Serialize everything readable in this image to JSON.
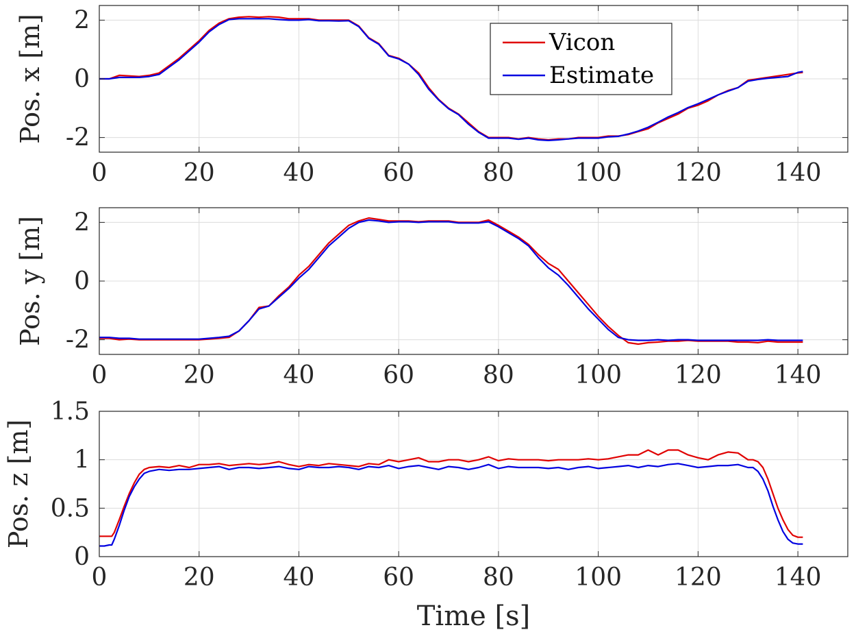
{
  "colors": {
    "vicon": "#e00000",
    "estimate": "#0000e0"
  },
  "legend": {
    "vicon": "Vicon",
    "estimate": "Estimate",
    "placement": "top-right (top subplot)"
  },
  "chart_data": [
    {
      "type": "line",
      "name": "pos-x",
      "ylabel": "Pos. x [m]",
      "xlabel": "",
      "xlim": [
        0,
        150
      ],
      "ylim": [
        -2.5,
        2.5
      ],
      "xticks": [
        0,
        20,
        40,
        60,
        80,
        100,
        120,
        140
      ],
      "yticks": [
        -2,
        0,
        2
      ],
      "ytick_labels": [
        "-2",
        "0",
        "2"
      ],
      "grid": true,
      "series": [
        {
          "name": "Vicon",
          "color_key": "vicon",
          "x": [
            0,
            2,
            4,
            6,
            8,
            10,
            12,
            14,
            16,
            18,
            20,
            22,
            24,
            26,
            28,
            30,
            32,
            34,
            36,
            38,
            40,
            42,
            44,
            46,
            48,
            50,
            52,
            54,
            56,
            58,
            60,
            62,
            64,
            66,
            68,
            70,
            72,
            74,
            76,
            78,
            80,
            82,
            84,
            86,
            88,
            90,
            92,
            94,
            96,
            98,
            100,
            102,
            104,
            106,
            108,
            110,
            112,
            114,
            116,
            118,
            120,
            122,
            124,
            126,
            128,
            130,
            132,
            134,
            136,
            138,
            140,
            141
          ],
          "y": [
            0.0,
            0.0,
            0.12,
            0.1,
            0.08,
            0.12,
            0.2,
            0.45,
            0.7,
            1.0,
            1.3,
            1.65,
            1.9,
            2.05,
            2.1,
            2.12,
            2.1,
            2.12,
            2.1,
            2.05,
            2.05,
            2.05,
            2.0,
            2.0,
            2.0,
            2.0,
            1.8,
            1.4,
            1.2,
            0.8,
            0.7,
            0.5,
            0.2,
            -0.3,
            -0.7,
            -1.0,
            -1.2,
            -1.5,
            -1.8,
            -2.0,
            -2.0,
            -2.0,
            -2.05,
            -2.0,
            -2.05,
            -2.08,
            -2.05,
            -2.05,
            -2.0,
            -2.0,
            -2.0,
            -1.95,
            -1.95,
            -1.9,
            -1.8,
            -1.7,
            -1.5,
            -1.35,
            -1.2,
            -1.0,
            -0.9,
            -0.75,
            -0.55,
            -0.4,
            -0.3,
            -0.05,
            0.0,
            0.05,
            0.1,
            0.15,
            0.2,
            0.22
          ]
        },
        {
          "name": "Estimate",
          "color_key": "estimate",
          "x": [
            0,
            2,
            4,
            6,
            8,
            10,
            12,
            14,
            16,
            18,
            20,
            22,
            24,
            26,
            28,
            30,
            32,
            34,
            36,
            38,
            40,
            42,
            44,
            46,
            48,
            50,
            52,
            54,
            56,
            58,
            60,
            62,
            64,
            66,
            68,
            70,
            72,
            74,
            76,
            78,
            80,
            82,
            84,
            86,
            88,
            90,
            92,
            94,
            96,
            98,
            100,
            102,
            104,
            106,
            108,
            110,
            112,
            114,
            116,
            118,
            120,
            122,
            124,
            126,
            128,
            130,
            132,
            134,
            136,
            138,
            140,
            141
          ],
          "y": [
            0.0,
            0.0,
            0.05,
            0.05,
            0.05,
            0.08,
            0.15,
            0.4,
            0.65,
            0.95,
            1.25,
            1.6,
            1.85,
            2.02,
            2.05,
            2.05,
            2.05,
            2.05,
            2.02,
            2.0,
            2.0,
            2.02,
            1.98,
            1.98,
            1.97,
            1.98,
            1.78,
            1.38,
            1.18,
            0.78,
            0.68,
            0.5,
            0.15,
            -0.35,
            -0.72,
            -1.02,
            -1.22,
            -1.55,
            -1.82,
            -2.02,
            -2.02,
            -2.02,
            -2.06,
            -2.02,
            -2.08,
            -2.1,
            -2.08,
            -2.05,
            -2.02,
            -2.02,
            -2.02,
            -1.98,
            -1.96,
            -1.88,
            -1.78,
            -1.65,
            -1.48,
            -1.3,
            -1.15,
            -0.98,
            -0.85,
            -0.7,
            -0.55,
            -0.42,
            -0.3,
            -0.08,
            -0.02,
            0.02,
            0.05,
            0.08,
            0.22,
            0.25
          ]
        }
      ]
    },
    {
      "type": "line",
      "name": "pos-y",
      "ylabel": "Pos. y [m]",
      "xlabel": "",
      "xlim": [
        0,
        150
      ],
      "ylim": [
        -2.5,
        2.5
      ],
      "xticks": [
        0,
        20,
        40,
        60,
        80,
        100,
        120,
        140
      ],
      "yticks": [
        -2,
        0,
        2
      ],
      "ytick_labels": [
        "-2",
        "0",
        "2"
      ],
      "grid": true,
      "series": [
        {
          "name": "Vicon",
          "color_key": "vicon",
          "x": [
            0,
            2,
            4,
            6,
            8,
            10,
            12,
            14,
            16,
            18,
            20,
            22,
            24,
            26,
            28,
            30,
            32,
            34,
            36,
            38,
            40,
            42,
            44,
            46,
            48,
            50,
            52,
            54,
            56,
            58,
            60,
            62,
            64,
            66,
            68,
            70,
            72,
            74,
            76,
            78,
            80,
            82,
            84,
            86,
            88,
            90,
            92,
            94,
            96,
            98,
            100,
            102,
            104,
            106,
            108,
            110,
            112,
            114,
            116,
            118,
            120,
            122,
            124,
            126,
            128,
            130,
            132,
            134,
            136,
            138,
            140,
            141
          ],
          "y": [
            -1.95,
            -1.95,
            -2.0,
            -1.98,
            -2.0,
            -2.0,
            -2.0,
            -2.0,
            -2.0,
            -2.0,
            -2.0,
            -1.98,
            -1.95,
            -1.92,
            -1.7,
            -1.35,
            -0.9,
            -0.85,
            -0.5,
            -0.2,
            0.2,
            0.5,
            0.9,
            1.3,
            1.6,
            1.9,
            2.05,
            2.15,
            2.1,
            2.05,
            2.05,
            2.05,
            2.02,
            2.05,
            2.05,
            2.05,
            2.0,
            2.0,
            2.0,
            2.08,
            1.9,
            1.7,
            1.5,
            1.25,
            0.9,
            0.6,
            0.4,
            0.0,
            -0.4,
            -0.8,
            -1.2,
            -1.55,
            -1.85,
            -2.1,
            -2.15,
            -2.1,
            -2.08,
            -2.05,
            -2.05,
            -2.02,
            -2.05,
            -2.05,
            -2.05,
            -2.05,
            -2.08,
            -2.08,
            -2.1,
            -2.05,
            -2.08,
            -2.08,
            -2.08,
            -2.08
          ]
        },
        {
          "name": "Estimate",
          "color_key": "estimate",
          "x": [
            0,
            2,
            4,
            6,
            8,
            10,
            12,
            14,
            16,
            18,
            20,
            22,
            24,
            26,
            28,
            30,
            32,
            34,
            36,
            38,
            40,
            42,
            44,
            46,
            48,
            50,
            52,
            54,
            56,
            58,
            60,
            62,
            64,
            66,
            68,
            70,
            72,
            74,
            76,
            78,
            80,
            82,
            84,
            86,
            88,
            90,
            92,
            94,
            96,
            98,
            100,
            102,
            104,
            106,
            108,
            110,
            112,
            114,
            116,
            118,
            120,
            122,
            124,
            126,
            128,
            130,
            132,
            134,
            136,
            138,
            140,
            141
          ],
          "y": [
            -1.92,
            -1.92,
            -1.95,
            -1.95,
            -1.98,
            -1.98,
            -1.98,
            -1.98,
            -1.98,
            -1.98,
            -1.98,
            -1.95,
            -1.92,
            -1.88,
            -1.7,
            -1.35,
            -0.95,
            -0.85,
            -0.55,
            -0.25,
            0.1,
            0.4,
            0.8,
            1.2,
            1.5,
            1.8,
            2.0,
            2.08,
            2.05,
            2.0,
            2.02,
            2.02,
            2.0,
            2.02,
            2.02,
            2.02,
            1.98,
            1.98,
            1.98,
            2.02,
            1.85,
            1.65,
            1.45,
            1.2,
            0.8,
            0.45,
            0.2,
            -0.15,
            -0.55,
            -0.95,
            -1.3,
            -1.65,
            -1.92,
            -2.0,
            -2.02,
            -2.02,
            -2.0,
            -2.02,
            -2.0,
            -2.0,
            -2.02,
            -2.02,
            -2.02,
            -2.02,
            -2.02,
            -2.02,
            -2.02,
            -2.0,
            -2.02,
            -2.02,
            -2.02,
            -2.02
          ]
        }
      ]
    },
    {
      "type": "line",
      "name": "pos-z",
      "ylabel": "Pos. z [m]",
      "xlabel": "Time [s]",
      "xlim": [
        0,
        150
      ],
      "ylim": [
        0,
        1.5
      ],
      "xticks": [
        0,
        20,
        40,
        60,
        80,
        100,
        120,
        140
      ],
      "yticks": [
        0,
        0.5,
        1,
        1.5
      ],
      "ytick_labels": [
        "0",
        "0.5",
        "1",
        "1.5"
      ],
      "grid": true,
      "series": [
        {
          "name": "Vicon",
          "color_key": "vicon",
          "x": [
            0,
            1,
            2,
            2.5,
            3,
            4,
            5,
            6,
            7,
            8,
            9,
            10,
            12,
            14,
            16,
            18,
            20,
            22,
            24,
            26,
            28,
            30,
            32,
            34,
            36,
            38,
            40,
            42,
            44,
            46,
            48,
            50,
            52,
            54,
            56,
            58,
            60,
            62,
            64,
            66,
            68,
            70,
            72,
            74,
            76,
            78,
            80,
            82,
            84,
            86,
            88,
            90,
            92,
            94,
            96,
            98,
            100,
            102,
            104,
            106,
            108,
            110,
            112,
            114,
            116,
            118,
            120,
            122,
            124,
            126,
            128,
            130,
            131,
            132,
            133,
            134,
            135,
            136,
            137,
            138,
            139,
            140,
            141
          ],
          "y": [
            0.21,
            0.21,
            0.21,
            0.21,
            0.25,
            0.38,
            0.52,
            0.65,
            0.76,
            0.85,
            0.9,
            0.92,
            0.93,
            0.92,
            0.94,
            0.92,
            0.95,
            0.95,
            0.96,
            0.94,
            0.95,
            0.96,
            0.95,
            0.96,
            0.98,
            0.95,
            0.93,
            0.95,
            0.94,
            0.96,
            0.95,
            0.94,
            0.93,
            0.96,
            0.95,
            1.0,
            0.98,
            1.0,
            1.02,
            0.98,
            0.98,
            1.0,
            1.0,
            0.98,
            1.0,
            1.03,
            0.99,
            1.01,
            1.0,
            1.0,
            1.0,
            0.99,
            1.0,
            1.0,
            1.0,
            1.01,
            1.0,
            1.01,
            1.03,
            1.05,
            1.05,
            1.1,
            1.05,
            1.1,
            1.1,
            1.05,
            1.02,
            1.0,
            1.05,
            1.08,
            1.07,
            1.0,
            1.0,
            0.98,
            0.92,
            0.8,
            0.65,
            0.5,
            0.38,
            0.28,
            0.22,
            0.2,
            0.2
          ]
        },
        {
          "name": "Estimate",
          "color_key": "estimate",
          "x": [
            0,
            1,
            2,
            2.5,
            3,
            4,
            5,
            6,
            7,
            8,
            9,
            10,
            12,
            14,
            16,
            18,
            20,
            22,
            24,
            26,
            28,
            30,
            32,
            34,
            36,
            38,
            40,
            42,
            44,
            46,
            48,
            50,
            52,
            54,
            56,
            58,
            60,
            62,
            64,
            66,
            68,
            70,
            72,
            74,
            76,
            78,
            80,
            82,
            84,
            86,
            88,
            90,
            92,
            94,
            96,
            98,
            100,
            102,
            104,
            106,
            108,
            110,
            112,
            114,
            116,
            118,
            120,
            122,
            124,
            126,
            128,
            130,
            131,
            132,
            133,
            134,
            135,
            136,
            137,
            138,
            139,
            140,
            141
          ],
          "y": [
            0.11,
            0.11,
            0.12,
            0.12,
            0.18,
            0.32,
            0.48,
            0.62,
            0.72,
            0.8,
            0.86,
            0.88,
            0.9,
            0.89,
            0.9,
            0.9,
            0.91,
            0.92,
            0.93,
            0.9,
            0.92,
            0.92,
            0.91,
            0.92,
            0.93,
            0.91,
            0.9,
            0.93,
            0.92,
            0.92,
            0.93,
            0.92,
            0.9,
            0.93,
            0.92,
            0.94,
            0.91,
            0.93,
            0.94,
            0.92,
            0.9,
            0.93,
            0.92,
            0.9,
            0.92,
            0.95,
            0.91,
            0.93,
            0.92,
            0.92,
            0.92,
            0.91,
            0.92,
            0.9,
            0.92,
            0.93,
            0.91,
            0.92,
            0.93,
            0.94,
            0.92,
            0.94,
            0.93,
            0.95,
            0.96,
            0.94,
            0.92,
            0.93,
            0.94,
            0.94,
            0.95,
            0.92,
            0.92,
            0.88,
            0.8,
            0.68,
            0.52,
            0.38,
            0.26,
            0.18,
            0.14,
            0.13,
            0.13
          ]
        }
      ]
    }
  ]
}
